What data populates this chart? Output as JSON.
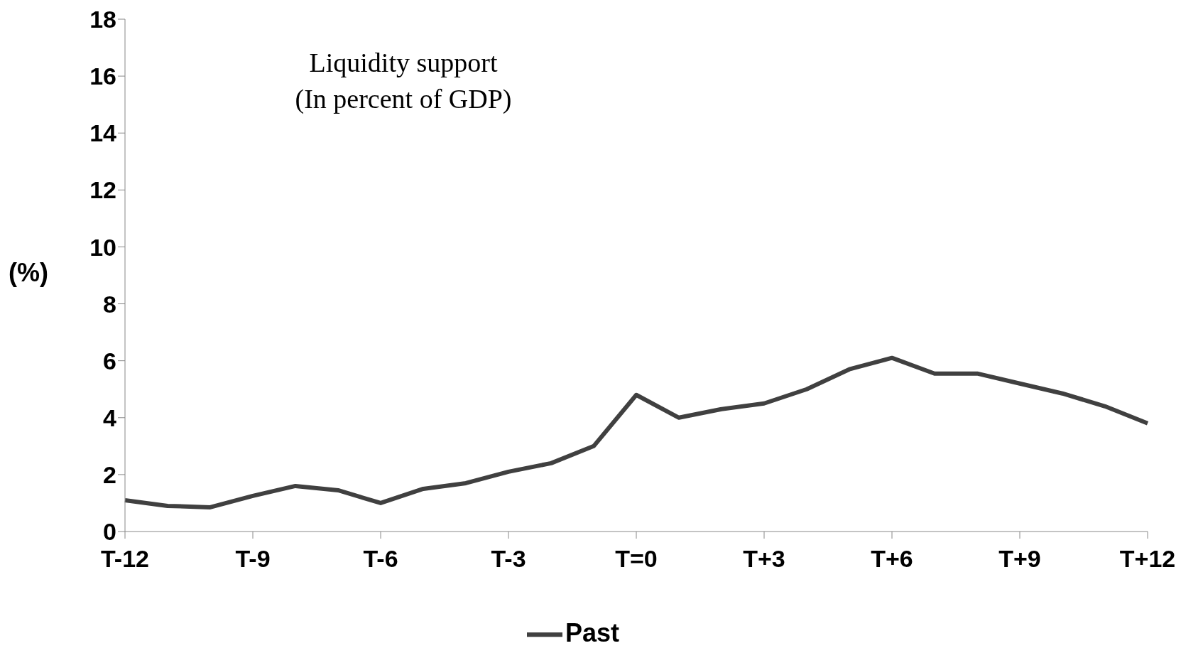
{
  "chart_data": {
    "type": "line",
    "title": "Liquidity support",
    "subtitle": "(In percent of GDP)",
    "ylabel": "(%)",
    "categories": [
      "T-12",
      null,
      null,
      "T-9",
      null,
      null,
      "T-6",
      null,
      null,
      "T-3",
      null,
      null,
      "T=0",
      null,
      null,
      "T+3",
      null,
      null,
      "T+6",
      null,
      null,
      "T+9",
      null,
      null,
      "T+12"
    ],
    "series": [
      {
        "name": "Past",
        "color": "#404040",
        "values": [
          1.1,
          0.9,
          0.85,
          1.25,
          1.6,
          1.45,
          1.0,
          1.5,
          1.7,
          2.1,
          2.4,
          3.0,
          4.8,
          4.0,
          4.3,
          4.5,
          5.0,
          5.7,
          6.1,
          5.55,
          5.55,
          5.2,
          4.85,
          4.4,
          3.8
        ]
      }
    ],
    "ylim": [
      0,
      18
    ],
    "yticks": [
      0,
      2,
      4,
      6,
      8,
      10,
      12,
      14,
      16,
      18
    ],
    "legend": "bottom",
    "marker": "none",
    "line_style": "solid"
  }
}
